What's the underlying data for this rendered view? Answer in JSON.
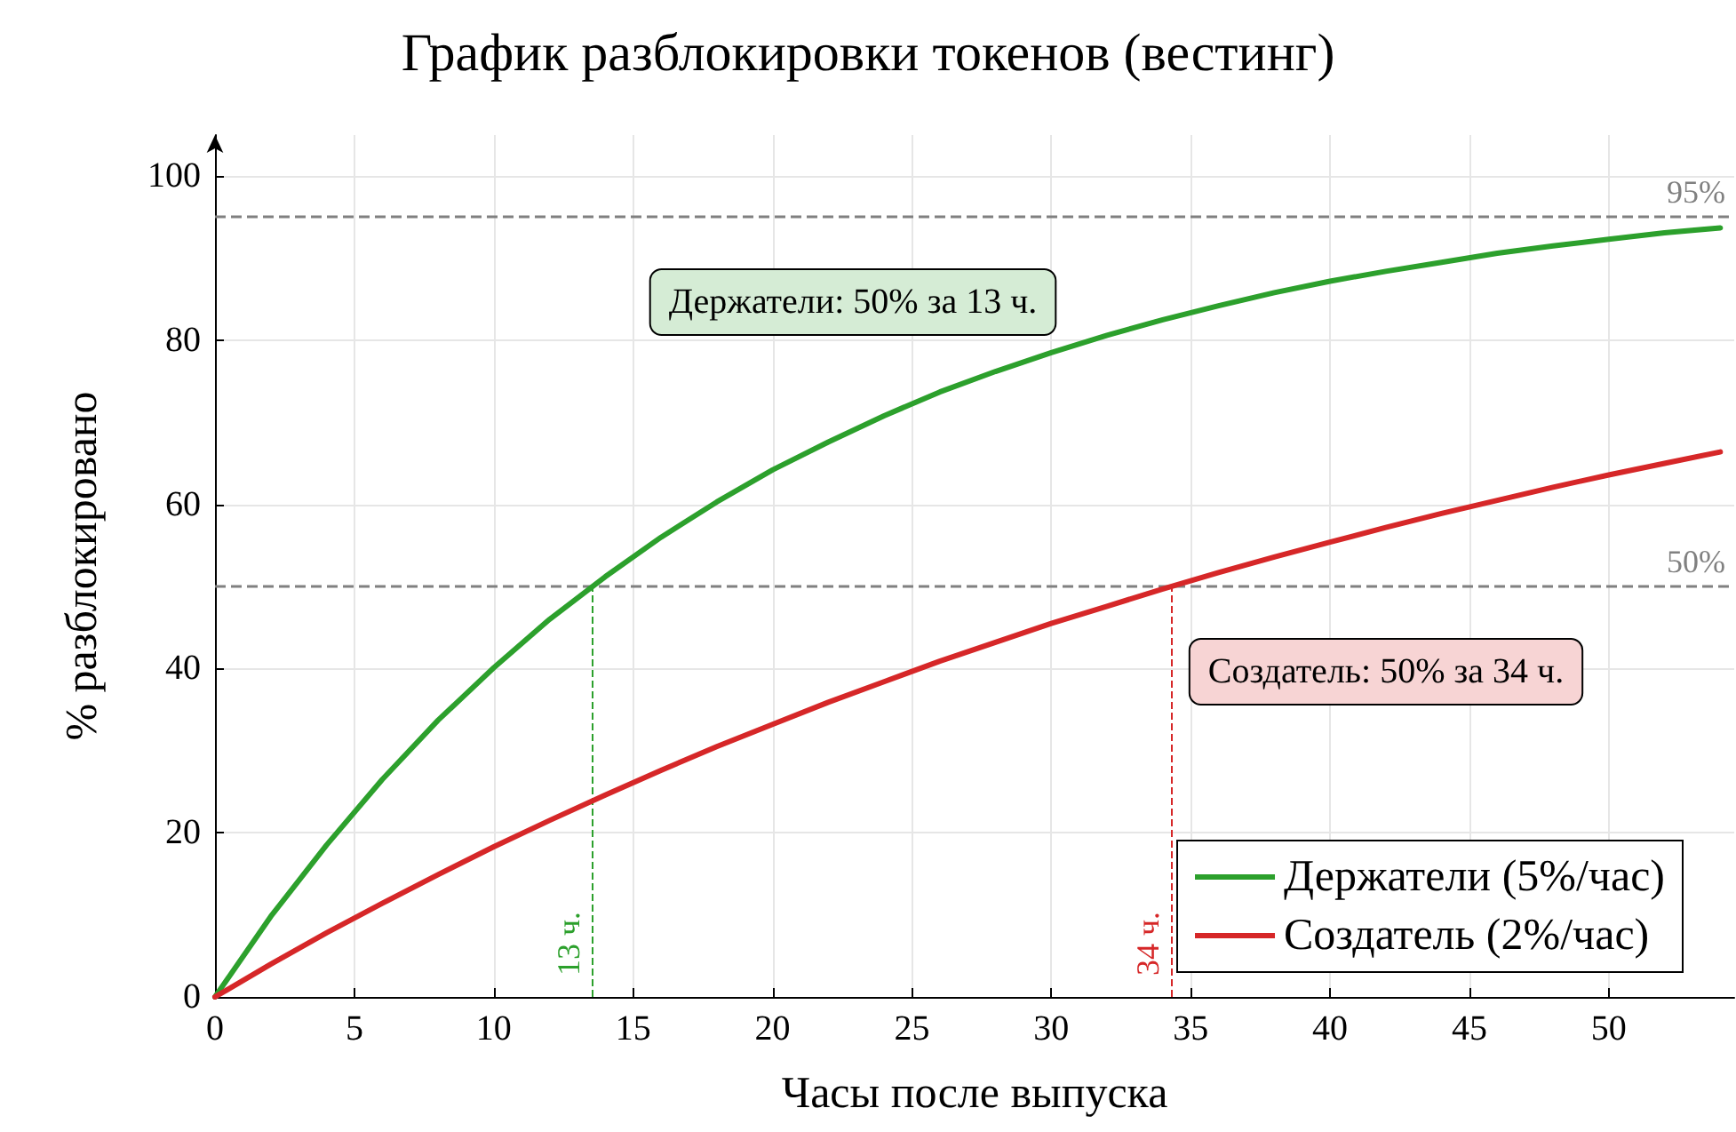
{
  "chart_data": {
    "type": "line",
    "title": "График разблокировки токенов (вестинг)",
    "xlabel": "Часы после выпуска",
    "ylabel": "% разблокировано",
    "x": [
      0,
      2,
      4,
      6,
      8,
      10,
      12,
      14,
      16,
      18,
      20,
      22,
      24,
      26,
      28,
      30,
      32,
      34,
      36,
      38,
      40,
      42,
      44,
      46,
      48,
      50,
      52,
      54
    ],
    "series": [
      {
        "name": "Держатели (5%/час)",
        "color": "#2ca02c",
        "values": [
          0,
          9.8,
          18.5,
          26.5,
          33.7,
          40.1,
          46.0,
          51.2,
          56.0,
          60.3,
          64.2,
          67.6,
          70.8,
          73.7,
          76.2,
          78.5,
          80.6,
          82.5,
          84.2,
          85.8,
          87.2,
          88.4,
          89.5,
          90.6,
          91.5,
          92.3,
          93.1,
          93.7
        ]
      },
      {
        "name": "Создатель (2%/час)",
        "color": "#d62728",
        "values": [
          0,
          4.0,
          7.8,
          11.4,
          14.9,
          18.3,
          21.5,
          24.6,
          27.6,
          30.5,
          33.2,
          35.9,
          38.4,
          40.9,
          43.2,
          45.5,
          47.6,
          49.7,
          51.7,
          53.6,
          55.4,
          57.2,
          58.9,
          60.5,
          62.1,
          63.6,
          65.0,
          66.4
        ]
      }
    ],
    "xlim": [
      0,
      54.5
    ],
    "ylim": [
      0,
      105
    ],
    "xticks": [
      0,
      5,
      10,
      15,
      20,
      25,
      30,
      35,
      40,
      45,
      50
    ],
    "yticks": [
      0,
      20,
      40,
      60,
      80,
      100
    ],
    "ref_lines": [
      {
        "axis": "y",
        "value": 95,
        "label": "95%",
        "color": "#808080",
        "line_style": "dashed"
      },
      {
        "axis": "y",
        "value": 50,
        "label": "50%",
        "color": "#808080",
        "line_style": "dashed"
      },
      {
        "axis": "x",
        "value": 13.5,
        "label": "13 ч.",
        "color": "#2ca02c",
        "line_style": "dashed"
      },
      {
        "axis": "x",
        "value": 34.3,
        "label": "34 ч.",
        "color": "#d62728",
        "line_style": "dashed"
      }
    ],
    "annotations": [
      "Держатели: 50% за 13 ч.",
      "Создатель: 50% за 34 ч."
    ],
    "grid": true,
    "legend": "bottom right",
    "marker": "none",
    "line_style": "solid"
  }
}
